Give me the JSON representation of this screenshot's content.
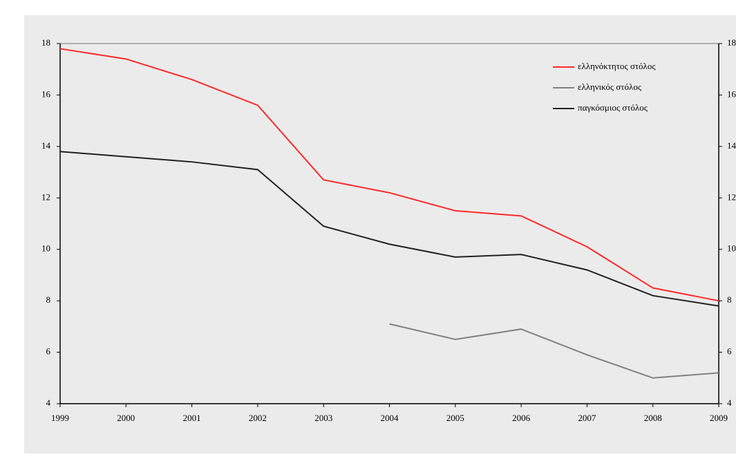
{
  "chart_data": {
    "type": "line",
    "x": [
      1999,
      2000,
      2001,
      2002,
      2003,
      2004,
      2005,
      2006,
      2007,
      2008,
      2009
    ],
    "xlim": [
      1999,
      2009
    ],
    "xticks": [
      1999,
      2000,
      2001,
      2002,
      2003,
      2004,
      2005,
      2006,
      2007,
      2008,
      2009
    ],
    "ylim": [
      4,
      18
    ],
    "yticks": [
      4,
      6,
      8,
      10,
      12,
      14,
      16,
      18
    ],
    "y2lim": [
      4,
      18
    ],
    "y2ticks": [
      4,
      6,
      8,
      10,
      12,
      14,
      16,
      18
    ],
    "legend": "top-right",
    "series": [
      {
        "name": "ελληνόκτητος στόλος",
        "color": "#ff2a2a",
        "values": [
          17.8,
          17.4,
          16.6,
          15.6,
          12.7,
          12.2,
          11.5,
          11.3,
          10.1,
          8.5,
          8.0
        ]
      },
      {
        "name": "ελληνικός στόλος",
        "color": "#808080",
        "values": [
          null,
          null,
          null,
          null,
          null,
          7.1,
          6.5,
          6.9,
          5.9,
          5.0,
          5.2
        ]
      },
      {
        "name": "παγκόσμιος στόλος",
        "color": "#202020",
        "values": [
          13.8,
          13.6,
          13.4,
          13.1,
          10.9,
          10.2,
          9.7,
          9.8,
          9.2,
          8.2,
          7.8
        ]
      }
    ]
  }
}
